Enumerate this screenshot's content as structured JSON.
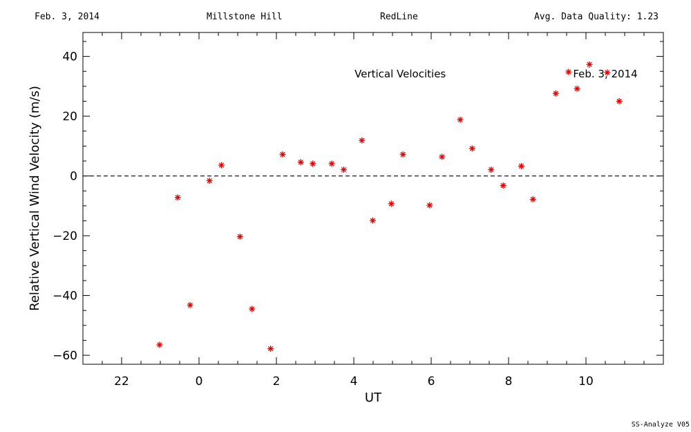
{
  "header": {
    "date": "Feb. 3, 2014",
    "site": "Millstone Hill",
    "filter": "RedLine",
    "quality": "Avg. Data Quality: 1.23"
  },
  "footer": "SS-Analyze V05",
  "chart_data": {
    "type": "scatter",
    "title": "",
    "xlabel": "UT",
    "ylabel": "Relative Vertical Wind Velocity (m/s)",
    "xlim": [
      21,
      36
    ],
    "ylim": [
      -63,
      48
    ],
    "xticks": [
      22,
      24,
      26,
      28,
      30,
      32,
      34
    ],
    "xtick_labels": [
      "22",
      "0",
      "2",
      "4",
      "6",
      "8",
      "10"
    ],
    "yticks": [
      -60,
      -40,
      -20,
      0,
      20,
      40
    ],
    "ytick_labels": [
      "−60",
      "−40",
      "−20",
      "0",
      "20",
      "40"
    ],
    "zero_line": true,
    "grid": false,
    "marker_color": "#e00000",
    "annotations": [
      {
        "text": "Vertical Velocities",
        "x": 29.2,
        "y": 33
      },
      {
        "text": "Feb. 3, 2014",
        "x": 34.5,
        "y": 33
      }
    ],
    "series": [
      {
        "x": [
          22.98,
          23.45,
          23.77,
          24.27,
          24.58,
          25.06,
          25.37,
          25.85,
          26.16,
          26.63,
          26.94,
          27.43,
          27.74,
          28.21,
          28.49,
          28.97,
          29.27,
          29.96,
          30.28,
          30.75,
          31.06,
          31.55,
          31.86,
          32.33,
          32.63,
          33.22,
          33.55,
          33.77,
          34.09,
          34.55,
          34.86
        ],
        "y": [
          -56.5,
          -7.2,
          -43.2,
          -1.6,
          3.6,
          -20.3,
          -44.5,
          -57.8,
          7.2,
          4.6,
          4.1,
          4.1,
          2.1,
          11.9,
          -14.9,
          -9.3,
          7.2,
          -9.8,
          6.4,
          18.8,
          9.2,
          2.1,
          -3.2,
          3.3,
          -7.8,
          27.6,
          34.8,
          29.2,
          37.3,
          34.6,
          25.0
        ]
      }
    ]
  }
}
